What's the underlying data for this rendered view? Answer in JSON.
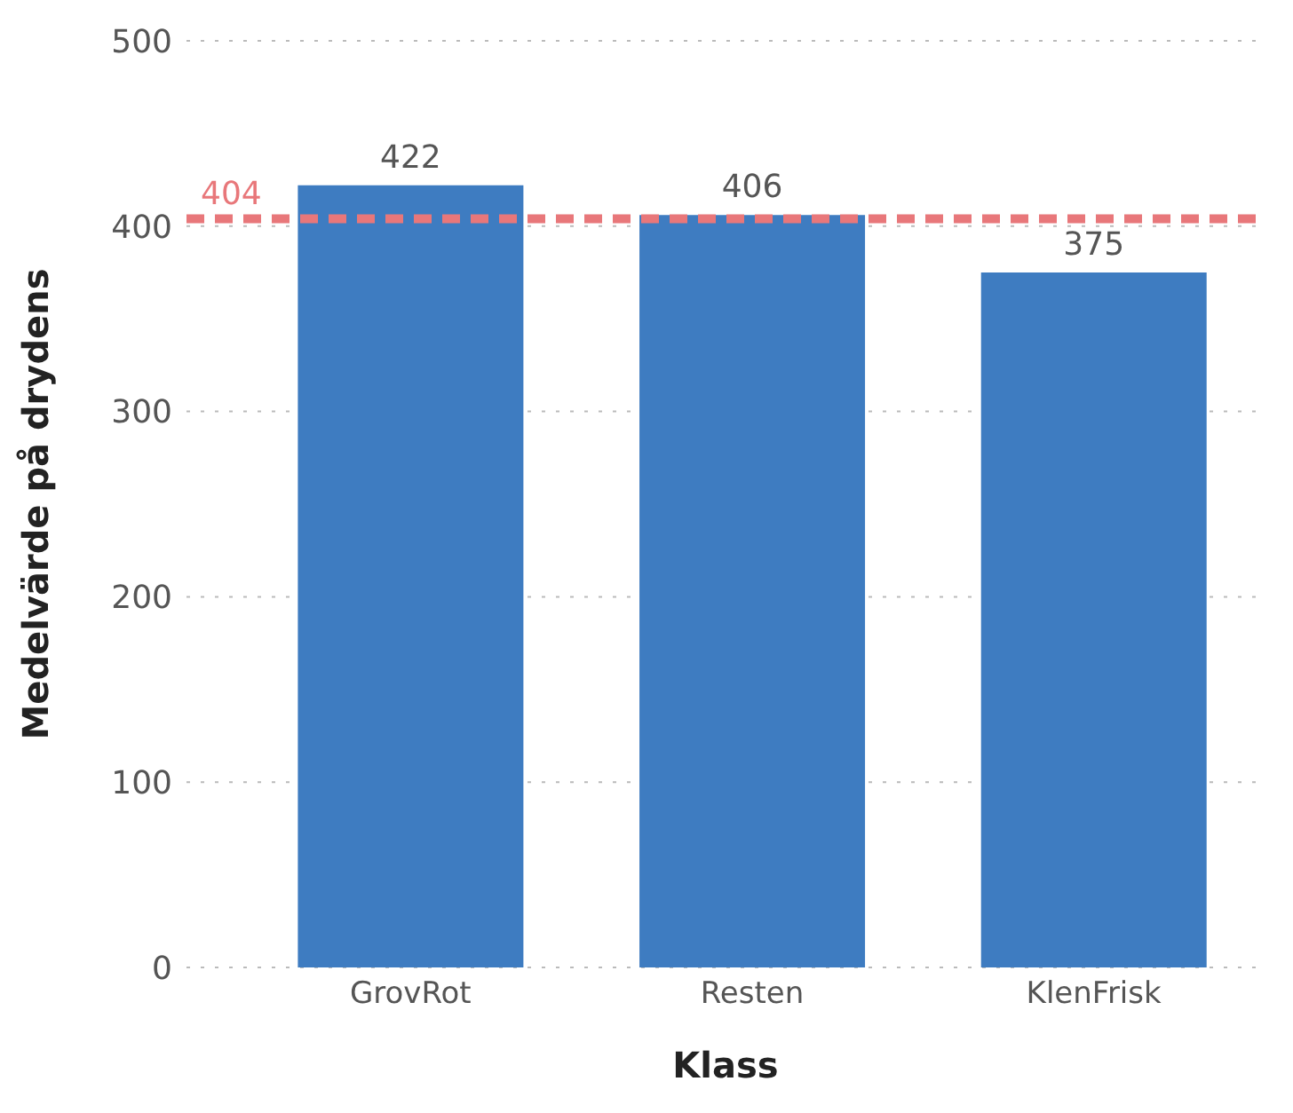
{
  "chart_data": {
    "type": "bar",
    "xlabel": "Klass",
    "ylabel": "Medelvärde på drydens",
    "categories": [
      "GrovRot",
      "Resten",
      "KlenFrisk"
    ],
    "values": [
      422,
      406,
      375
    ],
    "color": "#3e7cc1",
    "ylim": [
      0,
      500
    ],
    "yticks": [
      0,
      100,
      200,
      300,
      400,
      500
    ],
    "grid": "y",
    "data_labels": true,
    "ref_lines": [
      {
        "axis": "y",
        "value": 404,
        "label": "404",
        "color": "#e8777a",
        "line_style": "dashed"
      }
    ]
  }
}
